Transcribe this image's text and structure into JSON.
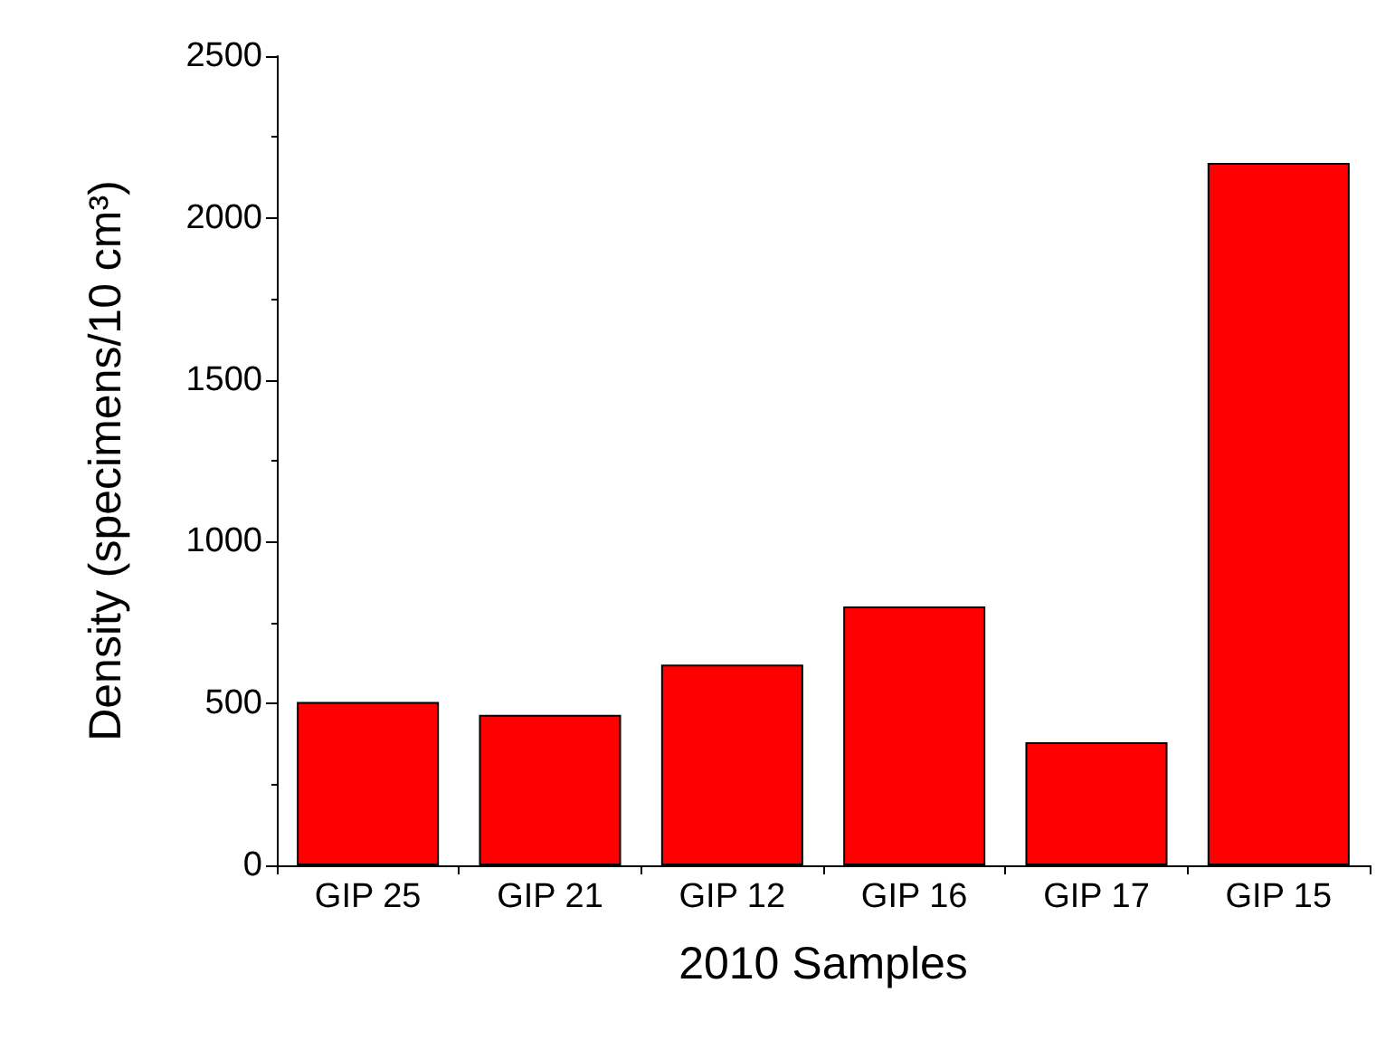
{
  "chart_data": {
    "type": "bar",
    "xlabel": "2010 Samples",
    "ylabel": "Density (specimens/10 cm³)",
    "categories": [
      "GIP 25",
      "GIP 21",
      "GIP 12",
      "GIP 16",
      "GIP 17",
      "GIP 15"
    ],
    "values": [
      505,
      465,
      620,
      800,
      380,
      2170
    ],
    "color": "#ff0000",
    "ylim": [
      0,
      2500
    ],
    "yticks": [
      0,
      500,
      1000,
      1500,
      2000,
      2500
    ],
    "grid": false
  }
}
